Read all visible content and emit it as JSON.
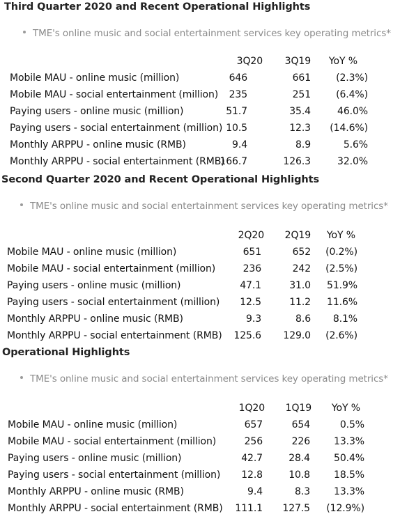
{
  "sections": [
    {
      "heading": "Third Quarter 2020 and Recent Operational Highlights",
      "bullet": "TME's online music and social entertainment services key operating metrics*",
      "columns": [
        "3Q20",
        "3Q19",
        "YoY %"
      ],
      "rows": [
        {
          "label": "Mobile MAU - online music (million)",
          "values": [
            "646",
            "661",
            "(2.3%)"
          ]
        },
        {
          "label": "Mobile MAU - social entertainment (million)",
          "values": [
            "235",
            "251",
            "(6.4%)"
          ]
        },
        {
          "label": "Paying users - online music (million)",
          "values": [
            "51.7",
            "35.4",
            "46.0%"
          ]
        },
        {
          "label": "Paying users - social entertainment (million)",
          "values": [
            "10.5",
            "12.3",
            "(14.6%)"
          ]
        },
        {
          "label": "Monthly ARPPU - online music (RMB)",
          "values": [
            "9.4",
            "8.9",
            "5.6%"
          ]
        },
        {
          "label": "Monthly ARPPU - social entertainment (RMB)",
          "values": [
            "166.7",
            "126.3",
            "32.0%"
          ]
        }
      ]
    },
    {
      "heading": "Second Quarter 2020 and Recent Operational Highlights",
      "bullet": "TME's online music and social entertainment services key operating metrics*",
      "columns": [
        "2Q20",
        "2Q19",
        "YoY %"
      ],
      "rows": [
        {
          "label": "Mobile MAU - online music (million)",
          "values": [
            "651",
            "652",
            "(0.2%)"
          ]
        },
        {
          "label": "Mobile MAU - social entertainment (million)",
          "values": [
            "236",
            "242",
            "(2.5%)"
          ]
        },
        {
          "label": "Paying users - online music (million)",
          "values": [
            "47.1",
            "31.0",
            "51.9%"
          ]
        },
        {
          "label": "Paying users - social entertainment (million)",
          "values": [
            "12.5",
            "11.2",
            "11.6%"
          ]
        },
        {
          "label": "Monthly ARPPU - online music (RMB)",
          "values": [
            "9.3",
            "8.6",
            "8.1%"
          ]
        },
        {
          "label": "Monthly ARPPU - social entertainment (RMB)",
          "values": [
            "125.6",
            "129.0",
            "(2.6%)"
          ]
        }
      ]
    },
    {
      "heading": "Operational Highlights",
      "bullet": "TME's online music and social entertainment services key operating metrics*",
      "columns": [
        "1Q20",
        "1Q19",
        "YoY %"
      ],
      "rows": [
        {
          "label": "Mobile MAU - online music (million)",
          "values": [
            "657",
            "654",
            "0.5%"
          ]
        },
        {
          "label": "Mobile MAU - social entertainment (million)",
          "values": [
            "256",
            "226",
            "13.3%"
          ]
        },
        {
          "label": "Paying users - online music (million)",
          "values": [
            "42.7",
            "28.4",
            "50.4%"
          ]
        },
        {
          "label": "Paying users - social entertainment (million)",
          "values": [
            "12.8",
            "10.8",
            "18.5%"
          ]
        },
        {
          "label": "Monthly ARPPU - online music (RMB)",
          "values": [
            "9.4",
            "8.3",
            "13.3%"
          ]
        },
        {
          "label": "Monthly ARPPU - social entertainment (RMB)",
          "values": [
            "111.1",
            "127.5",
            "(12.9%)"
          ]
        }
      ]
    }
  ]
}
